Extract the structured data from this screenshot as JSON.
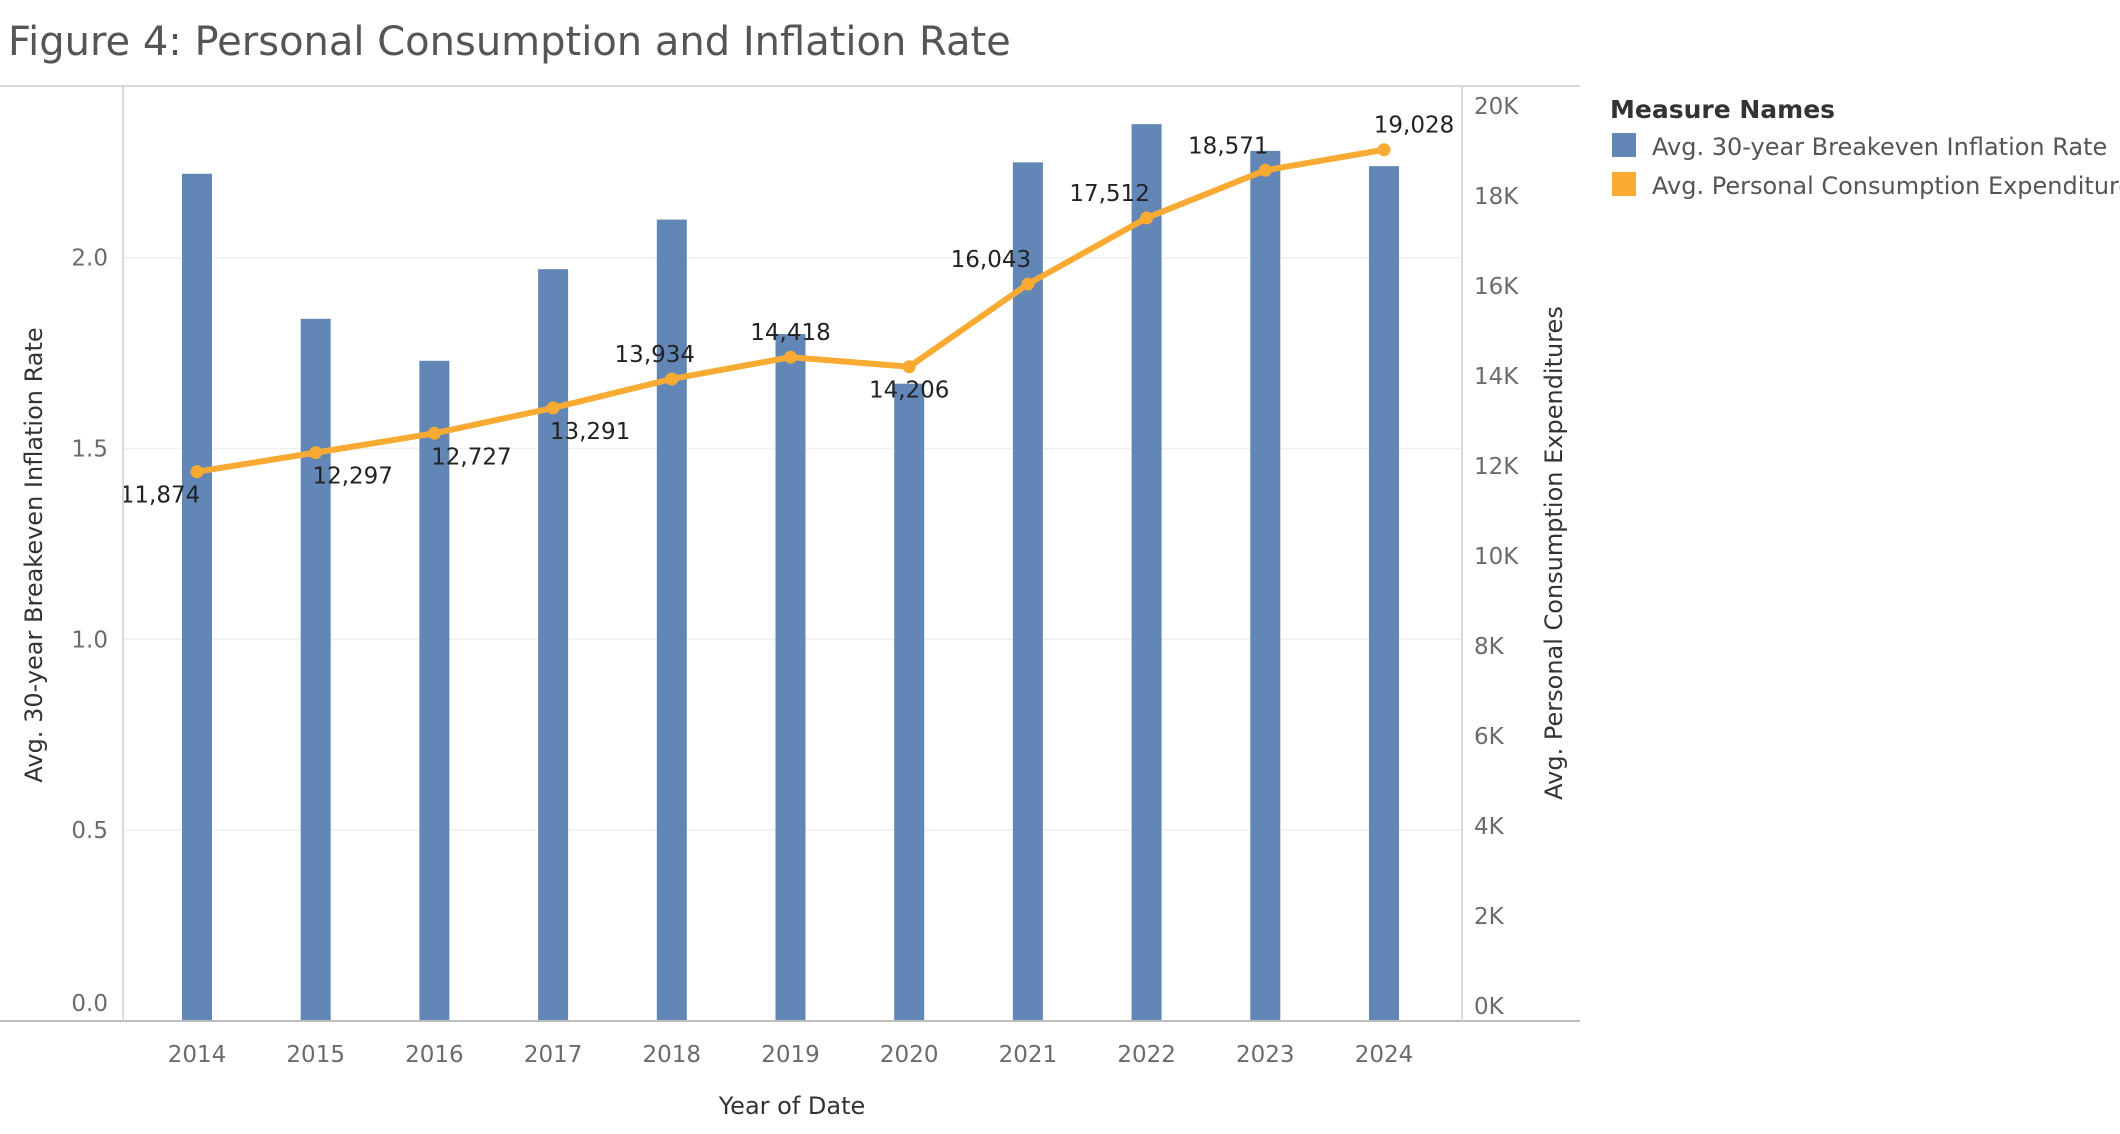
{
  "chart_data": {
    "type": "bar",
    "title": "Figure 4: Personal Consumption and Inflation Rate",
    "xlabel": "Year of Date",
    "categories": [
      "2014",
      "2015",
      "2016",
      "2017",
      "2018",
      "2019",
      "2020",
      "2021",
      "2022",
      "2023",
      "2024"
    ],
    "series": [
      {
        "name": "Avg. 30-year Breakeven Inflation Rate",
        "type": "bar",
        "axis": "left",
        "color": "#6287b6",
        "values": [
          2.22,
          1.84,
          1.73,
          1.97,
          2.1,
          1.8,
          1.67,
          2.25,
          2.35,
          2.28,
          2.24
        ]
      },
      {
        "name": "Avg. Personal Consumption Expenditures",
        "type": "line",
        "axis": "right",
        "color": "#f9aa33",
        "values": [
          11874,
          12297,
          12727,
          13291,
          13934,
          14418,
          14206,
          16043,
          17512,
          18571,
          19028
        ],
        "labels": [
          "11,874",
          "12,297",
          "12,727",
          "13,291",
          "13,934",
          "14,418",
          "14,206",
          "16,043",
          "17,512",
          "18,571",
          "19,028"
        ]
      }
    ],
    "y_left": {
      "label": "Avg. 30-year Breakeven Inflation Rate",
      "ticks": [
        "0.0",
        "0.5",
        "1.0",
        "1.5",
        "2.0"
      ],
      "tick_values": [
        0,
        0.5,
        1.0,
        1.5,
        2.0
      ],
      "range": [
        0,
        2.45
      ]
    },
    "y_right": {
      "label": "Avg. Personal Consumption Expenditures",
      "ticks": [
        "0K",
        "2K",
        "4K",
        "6K",
        "8K",
        "10K",
        "12K",
        "14K",
        "16K",
        "18K",
        "20K"
      ],
      "tick_values": [
        0,
        2000,
        4000,
        6000,
        8000,
        10000,
        12000,
        14000,
        16000,
        18000,
        20000
      ],
      "range": [
        0,
        20000
      ]
    },
    "grid": true,
    "legend": {
      "title": "Measure Names",
      "placement": "right"
    }
  }
}
